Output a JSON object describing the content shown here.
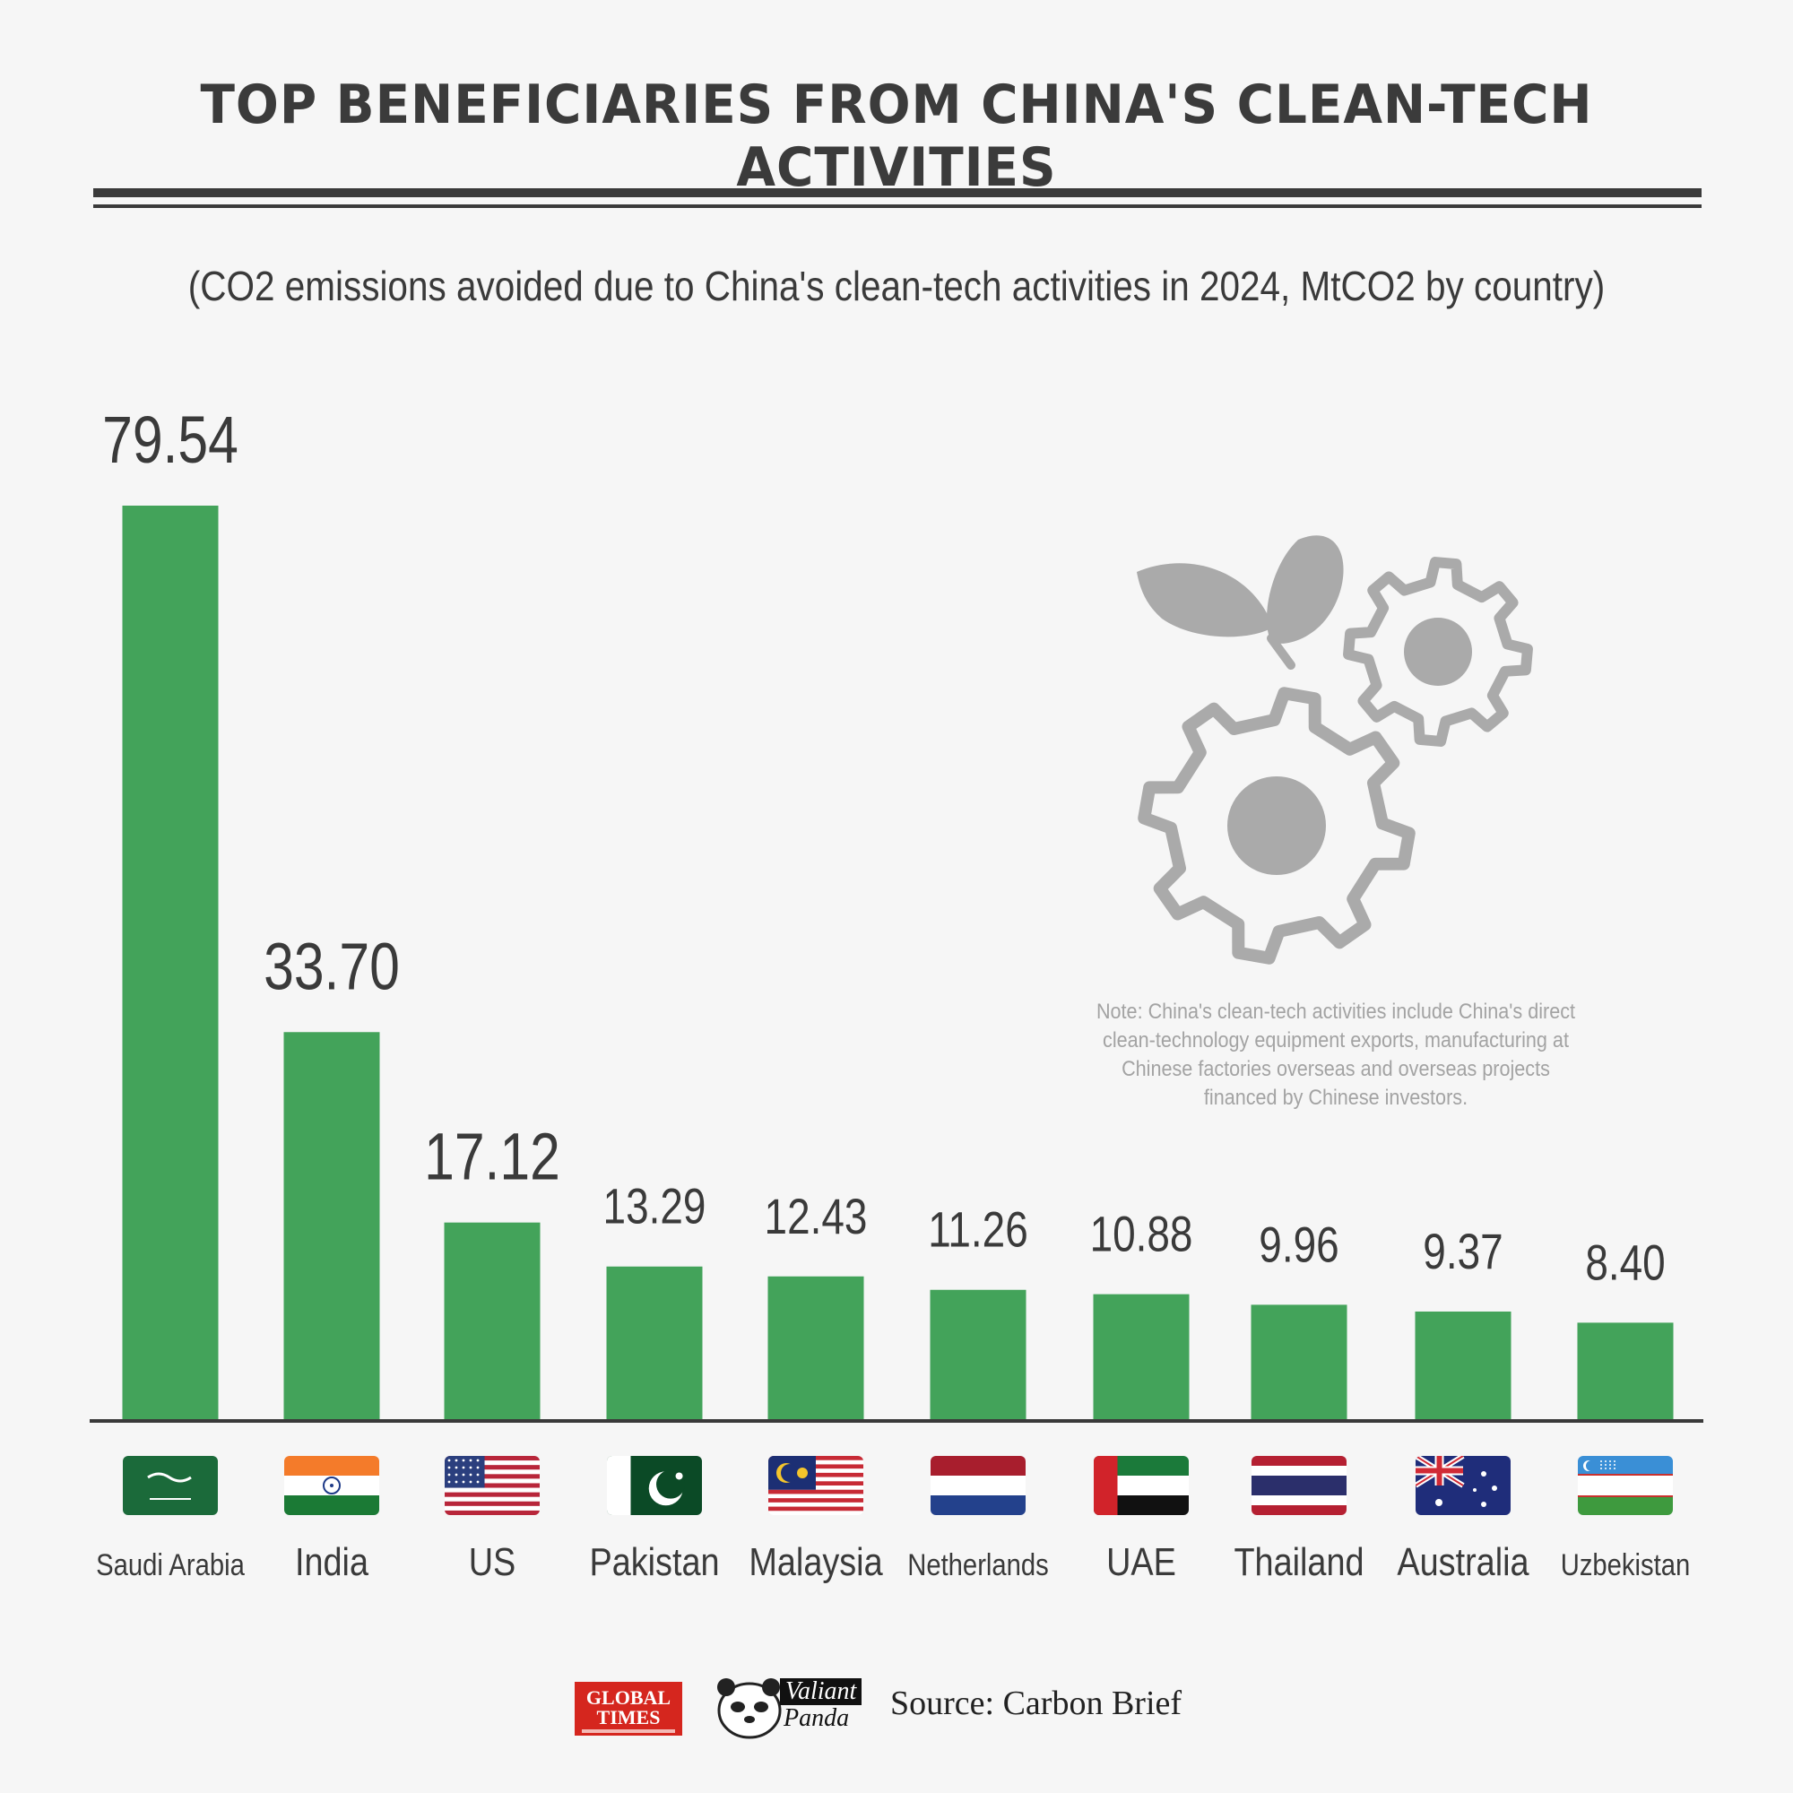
{
  "header": {
    "title": "TOP BENEFICIARIES FROM CHINA'S CLEAN-TECH ACTIVITIES",
    "subtitle": "(CO2 emissions avoided due to China's clean-tech activities in 2024, MtCO2 by country)"
  },
  "note": "Note: China's clean-tech activities include China's direct clean-technology equipment exports, manufacturing at Chinese factories overseas and overseas projects financed by Chinese investors.",
  "illustration": {
    "icon": "gears-with-leaf-icon",
    "color": "#aaaaaa"
  },
  "footer": {
    "logo1": "GLOBAL TIMES",
    "logo2_line1": "Valiant",
    "logo2_line2": "Panda",
    "source": "Source: Carbon Brief"
  },
  "colors": {
    "bar": "#43a35a",
    "axis": "#3a3a3a",
    "background": "#f6f6f6",
    "note": "#a3a3a3"
  },
  "chart_data": {
    "type": "bar",
    "title": "TOP BENEFICIARIES FROM CHINA'S CLEAN-TECH ACTIVITIES",
    "subtitle": "(CO2 emissions avoided due to China's clean-tech activities in 2024, MtCO2 by country)",
    "categories": [
      "Saudi Arabia",
      "India",
      "US",
      "Pakistan",
      "Malaysia",
      "Netherlands",
      "UAE",
      "Thailand",
      "Australia",
      "Uzbekistan"
    ],
    "values": [
      79.54,
      33.7,
      17.12,
      13.29,
      12.43,
      11.26,
      10.88,
      9.96,
      9.37,
      8.4
    ],
    "value_labels": [
      "79.54",
      "33.70",
      "17.12",
      "13.29",
      "12.43",
      "11.26",
      "10.88",
      "9.96",
      "9.37",
      "8.40"
    ],
    "flags": [
      "saudi-arabia-flag-icon",
      "india-flag-icon",
      "us-flag-icon",
      "pakistan-flag-icon",
      "malaysia-flag-icon",
      "netherlands-flag-icon",
      "uae-flag-icon",
      "thailand-flag-icon",
      "australia-flag-icon",
      "uzbekistan-flag-icon"
    ],
    "ylim": [
      0,
      79.54
    ],
    "grid": false,
    "legend": "none"
  }
}
